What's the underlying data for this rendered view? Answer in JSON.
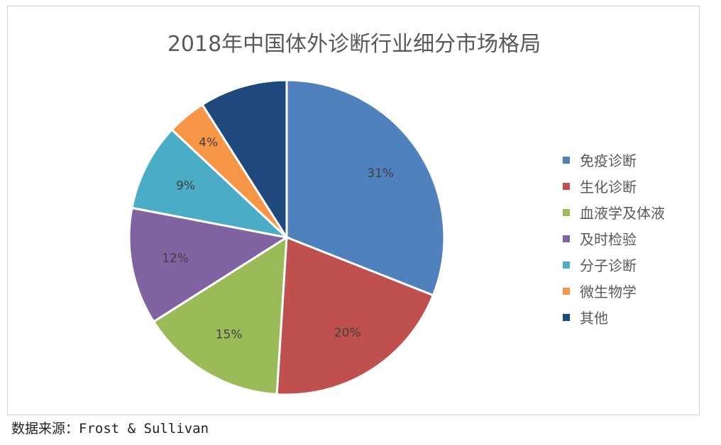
{
  "chart_data": {
    "type": "pie",
    "title": "2018年中国体外诊断行业细分市场格局",
    "slices": [
      {
        "name": "免疫诊断",
        "value": 31,
        "label": "31%",
        "color": "#4f81bd"
      },
      {
        "name": "生化诊断",
        "value": 20,
        "label": "20%",
        "color": "#c0504d"
      },
      {
        "name": "血液学及体液",
        "value": 15,
        "label": "15%",
        "color": "#9bbb59"
      },
      {
        "name": "及时检验",
        "value": 12,
        "label": "12%",
        "color": "#8064a2"
      },
      {
        "name": "分子诊断",
        "value": 9,
        "label": "9%",
        "color": "#4bacc6"
      },
      {
        "name": "微生物学",
        "value": 4,
        "label": "4%",
        "color": "#f79646"
      },
      {
        "name": "其他",
        "value": 9,
        "label": "",
        "color": "#1f497d"
      }
    ],
    "legend_position": "right"
  },
  "source": "数据来源：Frost & Sullivan"
}
